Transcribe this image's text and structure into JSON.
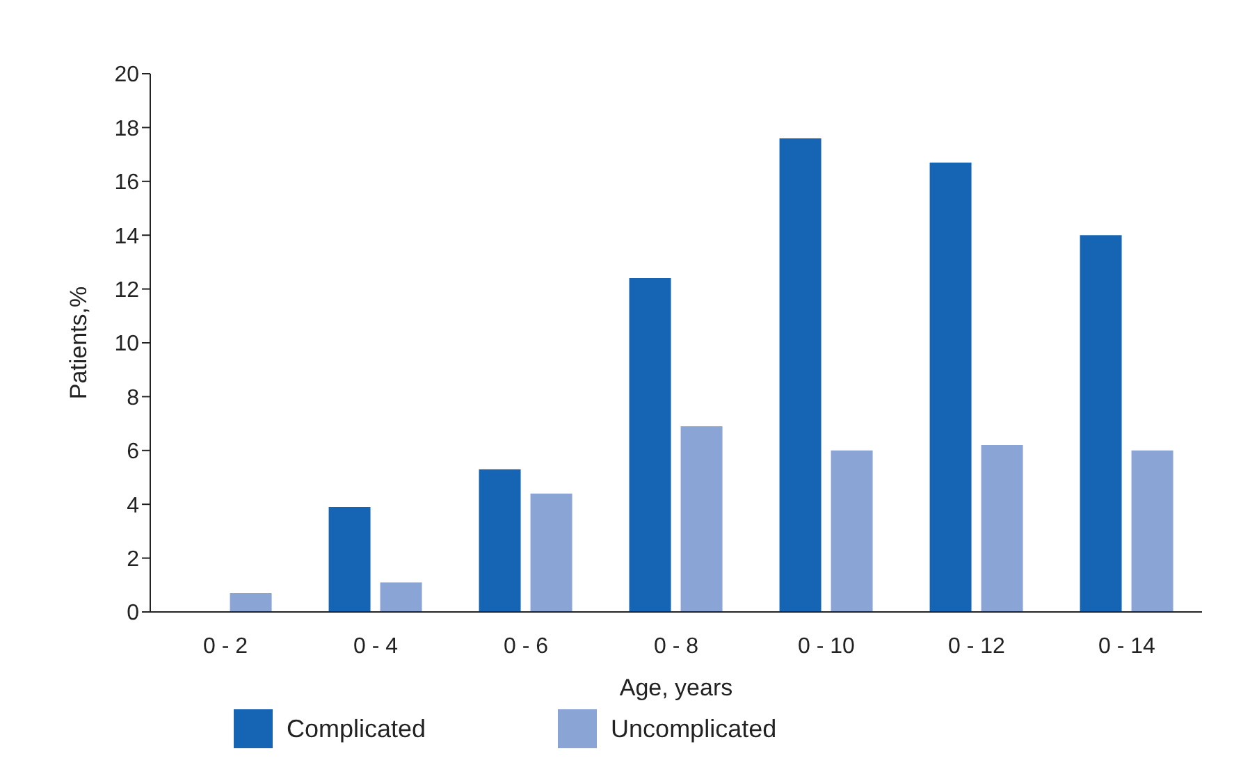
{
  "chart_data": {
    "type": "bar",
    "xlabel": "Age, years",
    "ylabel": "Patients,%",
    "categories": [
      "0 - 2",
      "0 - 4",
      "0 - 6",
      "0 - 8",
      "0 - 10",
      "0 - 12",
      "0 - 14"
    ],
    "series": [
      {
        "name": "Complicated",
        "color": "#1565b4",
        "values": [
          0,
          3.9,
          5.3,
          12.4,
          17.6,
          16.7,
          14.0
        ]
      },
      {
        "name": "Uncomplicated",
        "color": "#8aa4d6",
        "values": [
          0.7,
          1.1,
          4.4,
          6.9,
          6.0,
          6.2,
          6.0
        ]
      }
    ],
    "ylim": [
      0,
      20
    ],
    "yticks": [
      0,
      2,
      4,
      6,
      8,
      10,
      12,
      14,
      16,
      18,
      20
    ],
    "grid": false,
    "legend": "bottom left"
  }
}
